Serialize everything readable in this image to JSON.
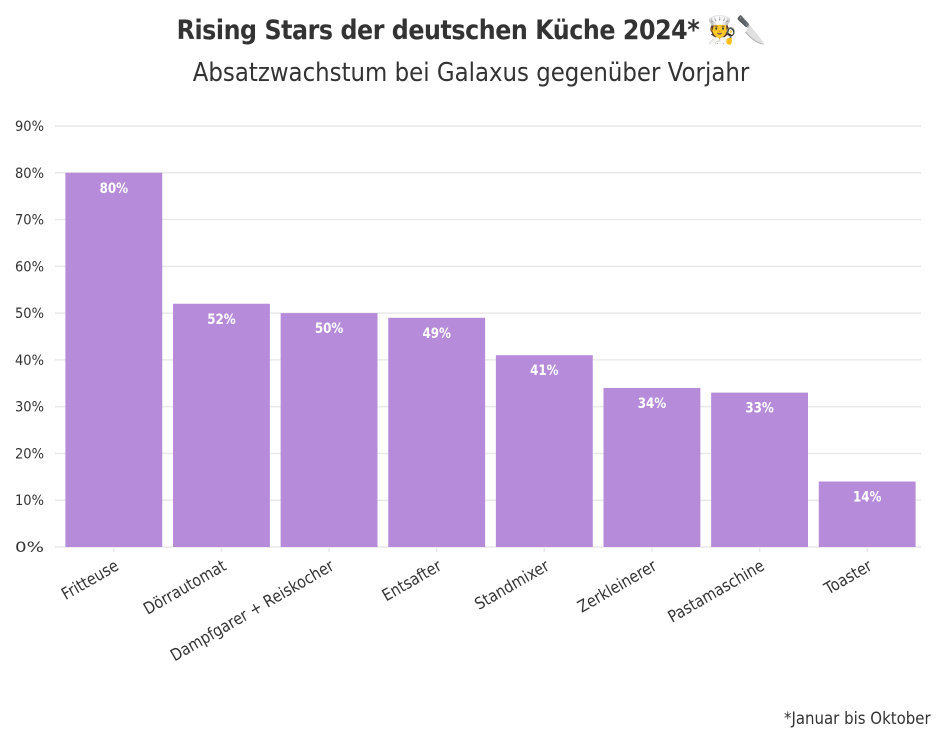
{
  "header": {
    "title": "Rising Stars der deutschen Küche 2024*",
    "title_emoji": "🧑‍🍳🔪",
    "subtitle": "Absatzwachstum bei Galaxus gegenüber Vorjahr"
  },
  "footnote": "*Januar bis Oktober",
  "colors": {
    "bar": "#B68BD9",
    "grid": "#E9E9E9",
    "axis_text": "#333333",
    "data_label": "#FFFFFF"
  },
  "chart_data": {
    "type": "bar",
    "categories": [
      "Fritteuse",
      "Dörrautomat",
      "Dampfgarer + Reiskocher",
      "Entsafter",
      "Standmixer",
      "Zerkleinerer",
      "Pastamaschine",
      "Toaster"
    ],
    "values": [
      80,
      52,
      50,
      49,
      41,
      34,
      33,
      14
    ],
    "data_labels": [
      "80%",
      "52%",
      "50%",
      "49%",
      "41%",
      "34%",
      "33%",
      "14%"
    ],
    "ylim": [
      0,
      90
    ],
    "yticks": [
      0,
      10,
      20,
      30,
      40,
      50,
      60,
      70,
      80,
      90
    ],
    "ytick_labels": [
      "0%",
      "10%",
      "20%",
      "30%",
      "40%",
      "50%",
      "60%",
      "70%",
      "80%",
      "90%"
    ],
    "grid": true,
    "legend": "none"
  }
}
